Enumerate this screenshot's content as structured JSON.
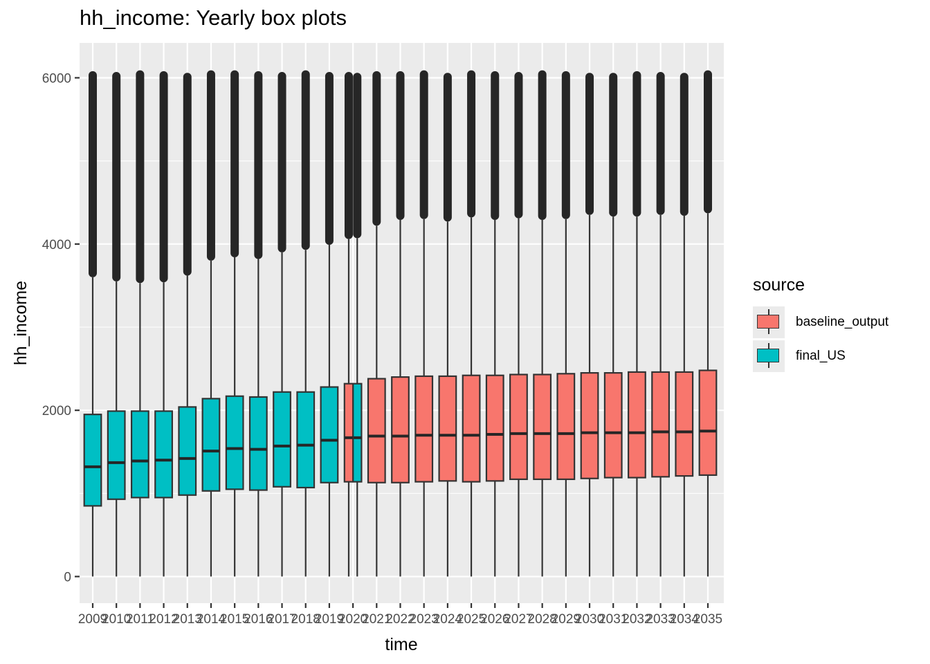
{
  "chart_data": {
    "type": "boxplot",
    "title": "hh_income: Yearly box plots",
    "xlabel": "time",
    "ylabel": "hh_income",
    "ylim": [
      -320,
      6420
    ],
    "yticks": [
      0,
      2000,
      4000,
      6000
    ],
    "categories": [
      "2009",
      "2010",
      "2011",
      "2012",
      "2013",
      "2014",
      "2015",
      "2016",
      "2017",
      "2018",
      "2019",
      "2020",
      "2021",
      "2022",
      "2023",
      "2024",
      "2025",
      "2026",
      "2027",
      "2028",
      "2029",
      "2030",
      "2031",
      "2032",
      "2033",
      "2034",
      "2035"
    ],
    "legend": {
      "title": "source",
      "position": "right",
      "entries": [
        {
          "name": "baseline_output",
          "color": "#f8766d"
        },
        {
          "name": "final_US",
          "color": "#00bfc4"
        }
      ]
    },
    "series": [
      {
        "name": "final_US",
        "color": "#00bfc4",
        "boxes": [
          {
            "x": "2009",
            "min": 0,
            "q1": 850,
            "median": 1320,
            "q3": 1950,
            "whisker_high": 3600,
            "outlier_max": 6080
          },
          {
            "x": "2010",
            "min": 0,
            "q1": 930,
            "median": 1370,
            "q3": 1990,
            "whisker_high": 3550,
            "outlier_max": 6070
          },
          {
            "x": "2011",
            "min": 0,
            "q1": 950,
            "median": 1390,
            "q3": 1990,
            "whisker_high": 3530,
            "outlier_max": 6090
          },
          {
            "x": "2012",
            "min": 0,
            "q1": 950,
            "median": 1400,
            "q3": 1990,
            "whisker_high": 3540,
            "outlier_max": 6080
          },
          {
            "x": "2013",
            "min": 0,
            "q1": 980,
            "median": 1420,
            "q3": 2040,
            "whisker_high": 3620,
            "outlier_max": 6060
          },
          {
            "x": "2014",
            "min": 0,
            "q1": 1030,
            "median": 1510,
            "q3": 2140,
            "whisker_high": 3800,
            "outlier_max": 6090
          },
          {
            "x": "2015",
            "min": 0,
            "q1": 1050,
            "median": 1540,
            "q3": 2170,
            "whisker_high": 3840,
            "outlier_max": 6090
          },
          {
            "x": "2016",
            "min": 0,
            "q1": 1040,
            "median": 1530,
            "q3": 2160,
            "whisker_high": 3820,
            "outlier_max": 6080
          },
          {
            "x": "2017",
            "min": 0,
            "q1": 1080,
            "median": 1570,
            "q3": 2220,
            "whisker_high": 3900,
            "outlier_max": 6070
          },
          {
            "x": "2018",
            "min": 0,
            "q1": 1070,
            "median": 1580,
            "q3": 2220,
            "whisker_high": 3930,
            "outlier_max": 6090
          },
          {
            "x": "2019",
            "min": 0,
            "q1": 1130,
            "median": 1640,
            "q3": 2280,
            "whisker_high": 3990,
            "outlier_max": 6070
          },
          {
            "x": "2020",
            "min": 0,
            "q1": 1140,
            "median": 1670,
            "q3": 2320,
            "whisker_high": 4070,
            "outlier_max": 6060
          }
        ]
      },
      {
        "name": "baseline_output",
        "color": "#f8766d",
        "boxes": [
          {
            "x": "2020",
            "min": 0,
            "q1": 1140,
            "median": 1670,
            "q3": 2320,
            "whisker_high": 4060,
            "outlier_max": 6070
          },
          {
            "x": "2021",
            "min": 0,
            "q1": 1130,
            "median": 1690,
            "q3": 2380,
            "whisker_high": 4220,
            "outlier_max": 6080
          },
          {
            "x": "2022",
            "min": 0,
            "q1": 1130,
            "median": 1690,
            "q3": 2400,
            "whisker_high": 4290,
            "outlier_max": 6080
          },
          {
            "x": "2023",
            "min": 0,
            "q1": 1140,
            "median": 1700,
            "q3": 2410,
            "whisker_high": 4300,
            "outlier_max": 6090
          },
          {
            "x": "2024",
            "min": 0,
            "q1": 1150,
            "median": 1700,
            "q3": 2410,
            "whisker_high": 4270,
            "outlier_max": 6060
          },
          {
            "x": "2025",
            "min": 0,
            "q1": 1140,
            "median": 1700,
            "q3": 2420,
            "whisker_high": 4320,
            "outlier_max": 6090
          },
          {
            "x": "2026",
            "min": 0,
            "q1": 1150,
            "median": 1710,
            "q3": 2420,
            "whisker_high": 4290,
            "outlier_max": 6080
          },
          {
            "x": "2027",
            "min": 0,
            "q1": 1170,
            "median": 1720,
            "q3": 2430,
            "whisker_high": 4310,
            "outlier_max": 6070
          },
          {
            "x": "2028",
            "min": 0,
            "q1": 1170,
            "median": 1720,
            "q3": 2430,
            "whisker_high": 4290,
            "outlier_max": 6090
          },
          {
            "x": "2029",
            "min": 0,
            "q1": 1170,
            "median": 1720,
            "q3": 2440,
            "whisker_high": 4300,
            "outlier_max": 6080
          },
          {
            "x": "2030",
            "min": 0,
            "q1": 1180,
            "median": 1730,
            "q3": 2450,
            "whisker_high": 4350,
            "outlier_max": 6060
          },
          {
            "x": "2031",
            "min": 0,
            "q1": 1190,
            "median": 1730,
            "q3": 2450,
            "whisker_high": 4330,
            "outlier_max": 6060
          },
          {
            "x": "2032",
            "min": 0,
            "q1": 1190,
            "median": 1730,
            "q3": 2460,
            "whisker_high": 4330,
            "outlier_max": 6080
          },
          {
            "x": "2033",
            "min": 0,
            "q1": 1200,
            "median": 1740,
            "q3": 2460,
            "whisker_high": 4350,
            "outlier_max": 6070
          },
          {
            "x": "2034",
            "min": 0,
            "q1": 1210,
            "median": 1740,
            "q3": 2460,
            "whisker_high": 4340,
            "outlier_max": 6060
          },
          {
            "x": "2035",
            "min": 0,
            "q1": 1220,
            "median": 1750,
            "q3": 2480,
            "whisker_high": 4370,
            "outlier_max": 6090
          }
        ]
      }
    ],
    "grid": true,
    "panel_background": "#ebebeb",
    "grid_color": "#ffffff",
    "box_outline_color": "#333333"
  }
}
